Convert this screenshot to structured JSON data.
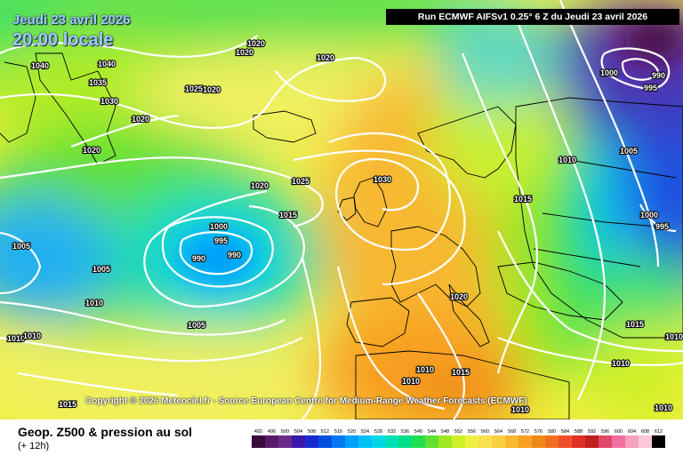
{
  "header": {
    "date": "Jeudi 23 avril 2026",
    "time": "20:00 locale",
    "run": "Run ECMWF AIFSv1 0.25° 6 Z du Jeudi 23 avril 2026"
  },
  "copyright": "Copyright © 2026 Meteociel.fr - Source European Centre for Medium-Range Weather Forecasts (ECMWF)",
  "legend": {
    "title": "Geop. Z500 & pression au sol",
    "subtitle": "(+ 12h)",
    "values": [
      "492",
      "496",
      "500",
      "504",
      "508",
      "512",
      "516",
      "520",
      "524",
      "528",
      "532",
      "536",
      "540",
      "544",
      "548",
      "552",
      "556",
      "560",
      "564",
      "568",
      "572",
      "576",
      "580",
      "584",
      "588",
      "592",
      "596",
      "600",
      "604",
      "608",
      "612"
    ],
    "colors": [
      "#3a0a3a",
      "#5a1a6a",
      "#6a2a8a",
      "#3a1aaa",
      "#1a2ad0",
      "#0050e0",
      "#0078f0",
      "#00a0f8",
      "#00c0f8",
      "#00d8e8",
      "#00e0b8",
      "#00e088",
      "#20e050",
      "#60e030",
      "#a0e820",
      "#d0f028",
      "#f0f040",
      "#f8e050",
      "#f8d040",
      "#f8b830",
      "#f8a020",
      "#f08818",
      "#f07020",
      "#f05028",
      "#e03028",
      "#c02020",
      "#e04868",
      "#f070a0",
      "#f8a0c0",
      "#f8c8d8",
      "#000000"
    ]
  },
  "isobars": [
    "1040",
    "1040",
    "1035",
    "1030",
    "1020",
    "1020",
    "1025",
    "1020",
    "1020",
    "1020",
    "1020",
    "1025",
    "1030",
    "1020",
    "1015",
    "1000",
    "995",
    "990",
    "990",
    "1005",
    "1005",
    "1010",
    "1005",
    "1010",
    "1010",
    "1015",
    "1020",
    "1010",
    "1015",
    "1010",
    "1010",
    "1010",
    "1015",
    "1000",
    "995",
    "990",
    "1005",
    "1000",
    "995",
    "1010",
    "1015",
    "1010",
    "1010",
    "1015",
    "1020"
  ]
}
